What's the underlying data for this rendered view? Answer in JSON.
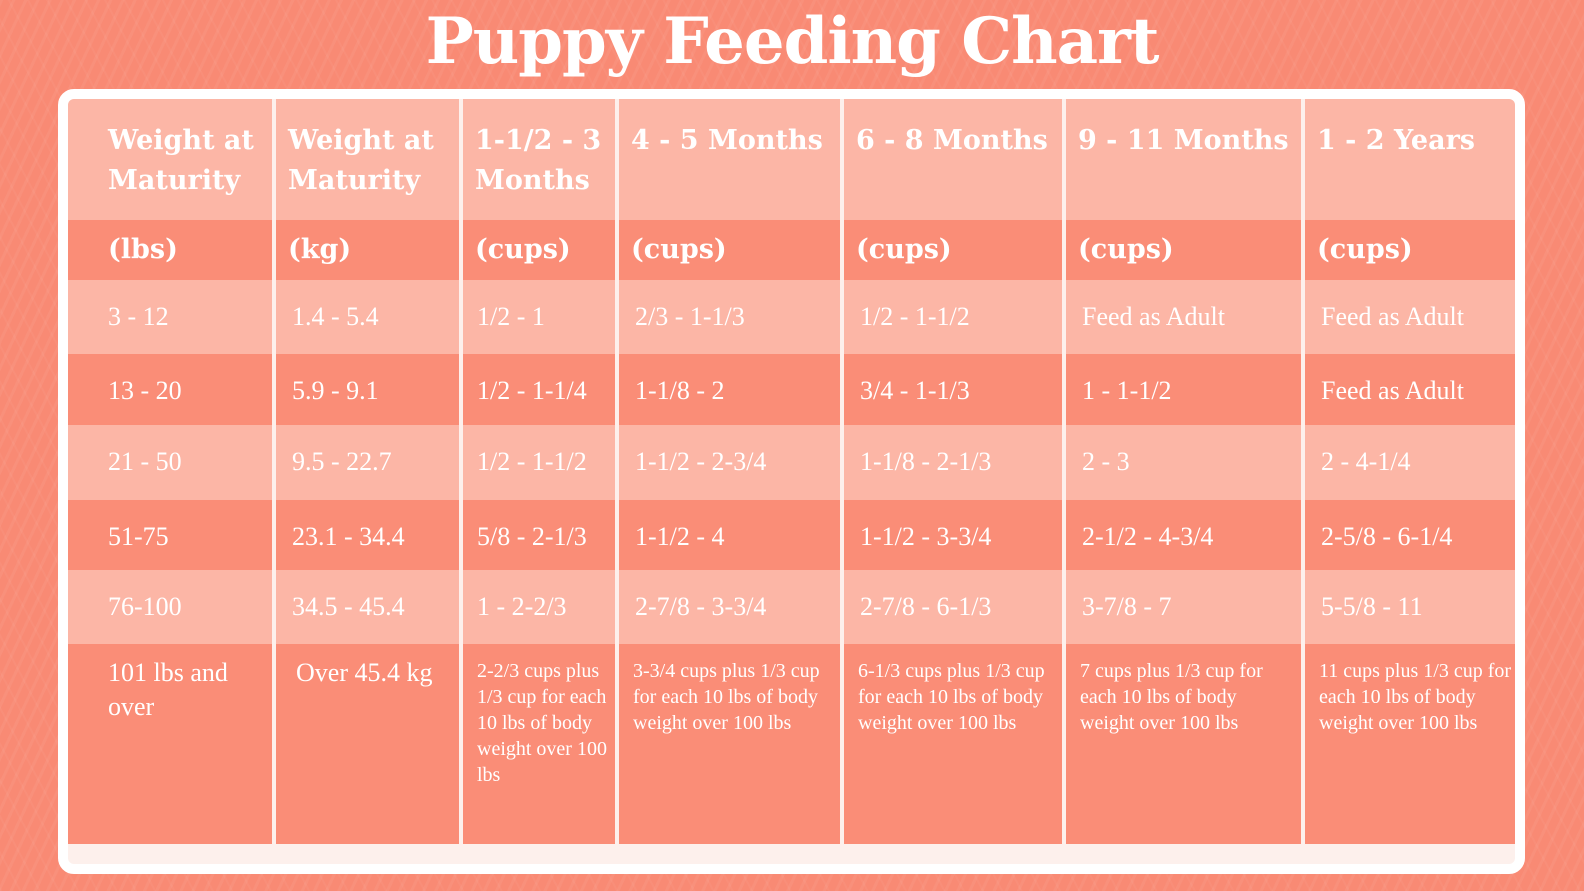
{
  "title": "Puppy Feeding Chart",
  "colors": {
    "background": "#f98a74",
    "light_row": "#fcb6a6",
    "dark_row": "#fa8d77",
    "frame": "#ffffff"
  },
  "chart_data": {
    "type": "table",
    "title": "Puppy Feeding Chart",
    "headers": [
      "Weight at Maturity",
      "Weight at Maturity",
      "1-1/2 - 3 Months",
      "4 - 5 Months",
      "6 - 8 Months",
      "9 - 11 Months",
      "1 - 2 Years"
    ],
    "units": [
      "(lbs)",
      "(kg)",
      "(cups)",
      "(cups)",
      "(cups)",
      "(cups)",
      "(cups)"
    ],
    "rows": [
      [
        "3 - 12",
        "1.4 - 5.4",
        "1/2 - 1",
        "2/3 - 1-1/3",
        "1/2 - 1-1/2",
        "Feed as Adult",
        "Feed as Adult"
      ],
      [
        "13 - 20",
        "5.9 - 9.1",
        "1/2 - 1-1/4",
        "1-1/8 - 2",
        "3/4 - 1-1/3",
        "1 - 1-1/2",
        "Feed as Adult"
      ],
      [
        "21 - 50",
        "9.5 - 22.7",
        "1/2 - 1-1/2",
        "1-1/2 - 2-3/4",
        "1-1/8 - 2-1/3",
        "2 - 3",
        "2 - 4-1/4"
      ],
      [
        "51-75",
        "23.1 - 34.4",
        "5/8 - 2-1/3",
        "1-1/2 - 4",
        "1-1/2 - 3-3/4",
        "2-1/2 - 4-3/4",
        "2-5/8 - 6-1/4"
      ],
      [
        "76-100",
        "34.5 - 45.4",
        "1 - 2-2/3",
        "2-7/8 - 3-3/4",
        "2-7/8 - 6-1/3",
        "3-7/8 - 7",
        "5-5/8 - 11"
      ],
      [
        "101 lbs and over",
        "Over 45.4 kg",
        "2-2/3 cups plus 1/3 cup for each 10 lbs of body weight over 100 lbs",
        "3-3/4 cups plus 1/3 cup for each 10 lbs of body weight over 100 lbs",
        "6-1/3 cups plus 1/3 cup for each 10 lbs of body weight over 100 lbs",
        "7 cups plus 1/3 cup for each 10 lbs of body weight over 100 lbs",
        "11 cups plus 1/3 cup for each 10 lbs of body weight over 100 lbs"
      ]
    ]
  }
}
